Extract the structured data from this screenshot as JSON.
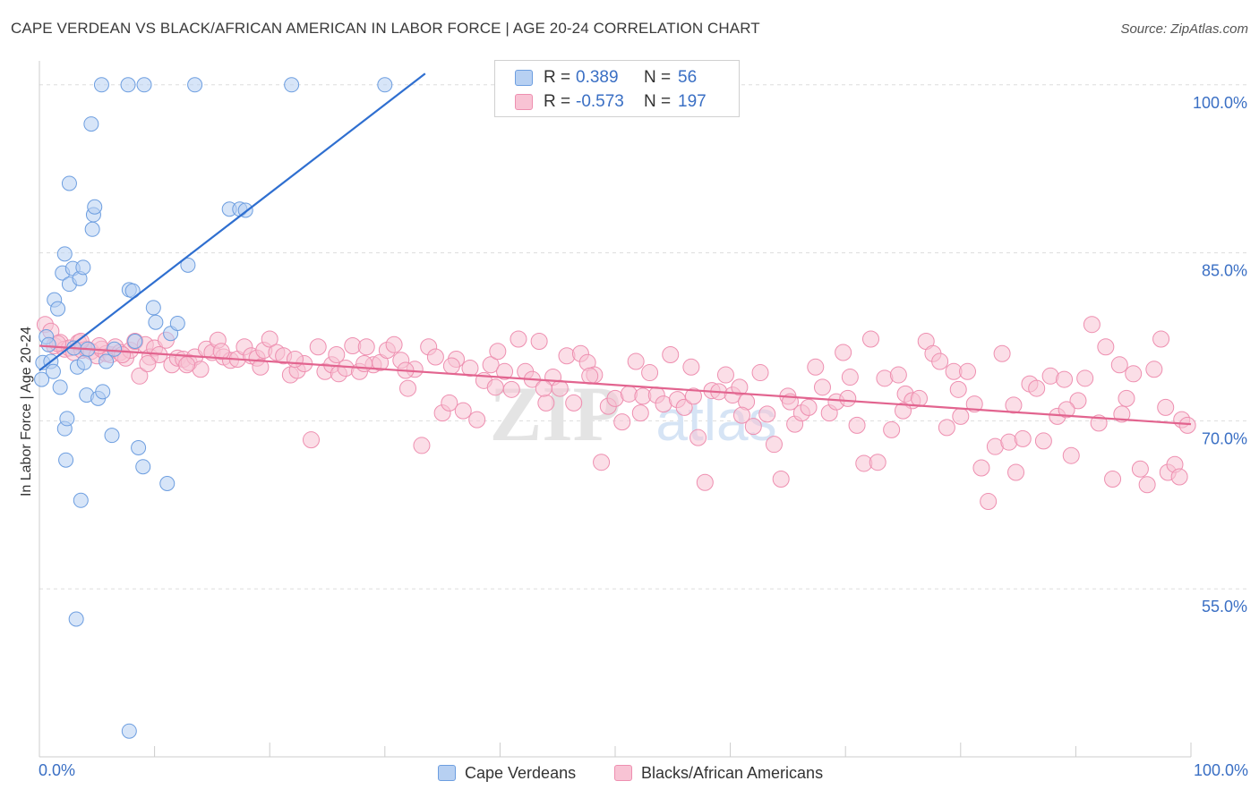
{
  "header": {
    "title": "CAPE VERDEAN VS BLACK/AFRICAN AMERICAN IN LABOR FORCE | AGE 20-24 CORRELATION CHART",
    "source": "Source: ZipAtlas.com"
  },
  "watermark": {
    "zip": "ZIP",
    "atlas": "atlas"
  },
  "colors": {
    "blue_fill": "#b7d0f2",
    "blue_stroke": "#6d9ee0",
    "blue_line": "#2f6fd0",
    "pink_fill": "#f8c3d4",
    "pink_stroke": "#ee8fb0",
    "pink_line": "#e2648f",
    "grid": "#dddddd",
    "axis_text": "#3a6fc4"
  },
  "legend": {
    "rows": [
      {
        "r_label": "R =",
        "r_value": "0.389",
        "n_label": "N =",
        "n_value": "56"
      },
      {
        "r_label": "R =",
        "r_value": "-0.573",
        "n_label": "N =",
        "n_value": "197"
      }
    ]
  },
  "bottom_legend": [
    {
      "label": "Cape Verdeans"
    },
    {
      "label": "Blacks/African Americans"
    }
  ],
  "chart_data": {
    "type": "scatter",
    "xlabel": "",
    "ylabel": "In Labor Force | Age 20-24",
    "xlim": [
      0,
      100
    ],
    "ylim": [
      40,
      101.5
    ],
    "x_tick_labels": [
      "0.0%",
      "100.0%"
    ],
    "y_ticks": [
      55,
      70,
      85,
      100
    ],
    "y_tick_labels": [
      "55.0%",
      "70.0%",
      "85.0%",
      "100.0%"
    ],
    "grid": true,
    "legend_position": "top-center",
    "series": [
      {
        "name": "Cape Verdeans",
        "color": "#6d9ee0",
        "trend": {
          "x1": 0,
          "y1": 74.5,
          "x2": 33.5,
          "y2": 101.0
        },
        "points": [
          [
            0.2,
            73.7
          ],
          [
            0.3,
            75.2
          ],
          [
            0.6,
            77.5
          ],
          [
            0.8,
            76.8
          ],
          [
            1.0,
            75.3
          ],
          [
            1.2,
            74.4
          ],
          [
            1.3,
            80.8
          ],
          [
            1.6,
            80.0
          ],
          [
            1.8,
            73.0
          ],
          [
            2.0,
            83.2
          ],
          [
            2.2,
            69.3
          ],
          [
            2.3,
            66.5
          ],
          [
            2.2,
            84.9
          ],
          [
            2.6,
            91.2
          ],
          [
            2.4,
            70.2
          ],
          [
            2.6,
            82.2
          ],
          [
            2.9,
            83.6
          ],
          [
            3.0,
            76.5
          ],
          [
            3.3,
            74.8
          ],
          [
            3.2,
            52.3
          ],
          [
            3.5,
            82.7
          ],
          [
            3.6,
            62.9
          ],
          [
            3.8,
            83.7
          ],
          [
            3.9,
            75.2
          ],
          [
            4.1,
            72.3
          ],
          [
            4.2,
            76.4
          ],
          [
            4.5,
            96.5
          ],
          [
            4.6,
            87.1
          ],
          [
            4.7,
            88.4
          ],
          [
            4.8,
            89.1
          ],
          [
            5.1,
            72.0
          ],
          [
            5.5,
            72.6
          ],
          [
            5.8,
            75.3
          ],
          [
            6.3,
            68.7
          ],
          [
            5.4,
            100
          ],
          [
            6.5,
            76.4
          ],
          [
            7.8,
            42.3
          ],
          [
            7.8,
            81.7
          ],
          [
            8.1,
            81.6
          ],
          [
            8.3,
            77.1
          ],
          [
            8.6,
            67.6
          ],
          [
            9.0,
            65.9
          ],
          [
            7.7,
            100
          ],
          [
            9.1,
            100
          ],
          [
            9.9,
            80.1
          ],
          [
            10.1,
            78.8
          ],
          [
            11.1,
            64.4
          ],
          [
            11.4,
            77.8
          ],
          [
            12.0,
            78.7
          ],
          [
            12.9,
            83.9
          ],
          [
            13.5,
            100
          ],
          [
            16.5,
            88.9
          ],
          [
            17.4,
            88.9
          ],
          [
            17.9,
            88.8
          ],
          [
            21.9,
            100
          ],
          [
            30.0,
            100
          ]
        ]
      },
      {
        "name": "Blacks/African Americans",
        "color": "#ee8fb0",
        "trend": {
          "x1": 0,
          "y1": 76.7,
          "x2": 100,
          "y2": 69.7
        },
        "points": [
          [
            0.5,
            78.6
          ],
          [
            1.0,
            78.0
          ],
          [
            1.3,
            76.7
          ],
          [
            1.8,
            77.0
          ],
          [
            2.2,
            76.4
          ],
          [
            2.6,
            76.5
          ],
          [
            3.0,
            76.1
          ],
          [
            3.4,
            77.0
          ],
          [
            3.7,
            76.3
          ],
          [
            4.1,
            76.4
          ],
          [
            4.5,
            76.2
          ],
          [
            5.0,
            75.8
          ],
          [
            5.4,
            76.4
          ],
          [
            5.8,
            76.0
          ],
          [
            6.2,
            75.9
          ],
          [
            6.6,
            76.6
          ],
          [
            7.0,
            76.1
          ],
          [
            7.5,
            75.6
          ],
          [
            7.9,
            76.3
          ],
          [
            8.3,
            77.1
          ],
          [
            8.7,
            74.0
          ],
          [
            9.2,
            76.8
          ],
          [
            9.6,
            75.7
          ],
          [
            10.0,
            76.5
          ],
          [
            10.4,
            75.9
          ],
          [
            11.0,
            77.2
          ],
          [
            11.5,
            75.0
          ],
          [
            12.0,
            75.6
          ],
          [
            12.5,
            75.5
          ],
          [
            13.0,
            75.2
          ],
          [
            13.5,
            75.7
          ],
          [
            14.0,
            74.6
          ],
          [
            14.5,
            76.4
          ],
          [
            15.0,
            76.1
          ],
          [
            15.5,
            77.2
          ],
          [
            16.0,
            75.7
          ],
          [
            16.6,
            75.4
          ],
          [
            17.2,
            75.5
          ],
          [
            17.8,
            76.6
          ],
          [
            18.4,
            75.8
          ],
          [
            18.9,
            75.6
          ],
          [
            19.5,
            76.3
          ],
          [
            20.0,
            77.3
          ],
          [
            20.6,
            76.1
          ],
          [
            21.2,
            75.8
          ],
          [
            21.8,
            74.1
          ],
          [
            22.4,
            74.5
          ],
          [
            23.0,
            75.1
          ],
          [
            23.6,
            68.3
          ],
          [
            24.2,
            76.6
          ],
          [
            24.8,
            74.4
          ],
          [
            25.4,
            75.0
          ],
          [
            26.0,
            74.2
          ],
          [
            26.6,
            74.7
          ],
          [
            27.2,
            76.7
          ],
          [
            27.8,
            74.4
          ],
          [
            28.4,
            76.6
          ],
          [
            29.0,
            75.0
          ],
          [
            29.6,
            75.2
          ],
          [
            30.2,
            76.3
          ],
          [
            30.8,
            76.8
          ],
          [
            31.4,
            75.4
          ],
          [
            32.0,
            72.9
          ],
          [
            32.6,
            74.6
          ],
          [
            33.2,
            67.8
          ],
          [
            33.8,
            76.6
          ],
          [
            34.4,
            75.7
          ],
          [
            35.0,
            70.7
          ],
          [
            35.6,
            71.6
          ],
          [
            36.2,
            75.5
          ],
          [
            36.8,
            70.9
          ],
          [
            37.4,
            74.7
          ],
          [
            38.0,
            70.1
          ],
          [
            38.6,
            73.6
          ],
          [
            39.2,
            75.0
          ],
          [
            39.8,
            76.2
          ],
          [
            40.4,
            74.4
          ],
          [
            41.0,
            72.8
          ],
          [
            41.6,
            77.3
          ],
          [
            42.2,
            74.4
          ],
          [
            42.8,
            73.7
          ],
          [
            43.4,
            77.1
          ],
          [
            44.0,
            71.6
          ],
          [
            44.6,
            73.9
          ],
          [
            45.2,
            72.9
          ],
          [
            45.8,
            75.8
          ],
          [
            46.4,
            71.6
          ],
          [
            47.0,
            76.0
          ],
          [
            47.6,
            75.2
          ],
          [
            48.2,
            74.1
          ],
          [
            48.8,
            66.3
          ],
          [
            49.4,
            71.3
          ],
          [
            50.0,
            72.0
          ],
          [
            50.6,
            69.9
          ],
          [
            51.2,
            72.4
          ],
          [
            51.8,
            75.3
          ],
          [
            52.4,
            72.2
          ],
          [
            53.0,
            74.3
          ],
          [
            53.6,
            72.3
          ],
          [
            54.2,
            71.5
          ],
          [
            54.8,
            75.9
          ],
          [
            55.4,
            71.9
          ],
          [
            56.0,
            71.2
          ],
          [
            56.6,
            74.8
          ],
          [
            57.2,
            68.5
          ],
          [
            57.8,
            64.5
          ],
          [
            58.4,
            72.7
          ],
          [
            59.0,
            72.6
          ],
          [
            59.6,
            74.1
          ],
          [
            60.2,
            72.3
          ],
          [
            60.8,
            73.0
          ],
          [
            61.4,
            71.7
          ],
          [
            62.0,
            69.5
          ],
          [
            62.6,
            74.3
          ],
          [
            63.2,
            70.6
          ],
          [
            63.8,
            67.9
          ],
          [
            64.4,
            64.8
          ],
          [
            65.0,
            72.2
          ],
          [
            65.6,
            69.7
          ],
          [
            66.2,
            70.7
          ],
          [
            66.8,
            71.2
          ],
          [
            67.4,
            74.8
          ],
          [
            68.0,
            73.0
          ],
          [
            68.6,
            70.7
          ],
          [
            69.2,
            71.7
          ],
          [
            69.8,
            76.1
          ],
          [
            70.4,
            73.9
          ],
          [
            71.0,
            69.6
          ],
          [
            71.6,
            66.2
          ],
          [
            72.2,
            77.3
          ],
          [
            72.8,
            66.3
          ],
          [
            73.4,
            73.8
          ],
          [
            74.0,
            69.2
          ],
          [
            74.6,
            74.1
          ],
          [
            75.2,
            72.4
          ],
          [
            75.8,
            71.8
          ],
          [
            76.4,
            72.0
          ],
          [
            77.0,
            77.1
          ],
          [
            77.6,
            76.0
          ],
          [
            78.2,
            75.3
          ],
          [
            78.8,
            69.4
          ],
          [
            79.4,
            74.4
          ],
          [
            80.0,
            70.4
          ],
          [
            80.6,
            74.4
          ],
          [
            81.2,
            71.5
          ],
          [
            81.8,
            65.8
          ],
          [
            82.4,
            62.8
          ],
          [
            83.0,
            67.7
          ],
          [
            83.6,
            76.0
          ],
          [
            84.2,
            68.1
          ],
          [
            84.8,
            65.4
          ],
          [
            85.4,
            68.4
          ],
          [
            86.0,
            73.3
          ],
          [
            86.6,
            72.9
          ],
          [
            87.2,
            68.2
          ],
          [
            87.8,
            74.0
          ],
          [
            88.4,
            70.4
          ],
          [
            89.0,
            73.7
          ],
          [
            89.6,
            66.9
          ],
          [
            90.2,
            71.8
          ],
          [
            90.8,
            73.8
          ],
          [
            91.4,
            78.6
          ],
          [
            92.0,
            69.8
          ],
          [
            92.6,
            76.6
          ],
          [
            93.2,
            64.8
          ],
          [
            93.8,
            75.0
          ],
          [
            94.4,
            72.0
          ],
          [
            95.0,
            74.2
          ],
          [
            95.6,
            65.7
          ],
          [
            96.2,
            64.3
          ],
          [
            96.8,
            74.6
          ],
          [
            97.4,
            77.3
          ],
          [
            98.0,
            65.4
          ],
          [
            98.6,
            66.1
          ],
          [
            99.2,
            70.1
          ],
          [
            99.7,
            69.6
          ],
          [
            1.6,
            76.9
          ],
          [
            3.6,
            77.1
          ],
          [
            5.2,
            76.7
          ],
          [
            7.2,
            75.9
          ],
          [
            9.4,
            75.1
          ],
          [
            12.8,
            75.0
          ],
          [
            15.8,
            76.2
          ],
          [
            19.2,
            74.8
          ],
          [
            22.2,
            75.5
          ],
          [
            25.8,
            75.9
          ],
          [
            28.2,
            75.1
          ],
          [
            31.8,
            74.5
          ],
          [
            35.8,
            74.9
          ],
          [
            39.6,
            73.0
          ],
          [
            43.8,
            72.9
          ],
          [
            47.8,
            74.0
          ],
          [
            52.2,
            70.7
          ],
          [
            56.8,
            72.2
          ],
          [
            61.0,
            70.5
          ],
          [
            65.2,
            71.7
          ],
          [
            70.2,
            72.0
          ],
          [
            75.0,
            70.9
          ],
          [
            79.8,
            72.8
          ],
          [
            84.6,
            71.4
          ],
          [
            89.2,
            71.0
          ],
          [
            94.0,
            70.6
          ],
          [
            97.8,
            71.2
          ],
          [
            99.0,
            65.0
          ]
        ]
      }
    ]
  }
}
